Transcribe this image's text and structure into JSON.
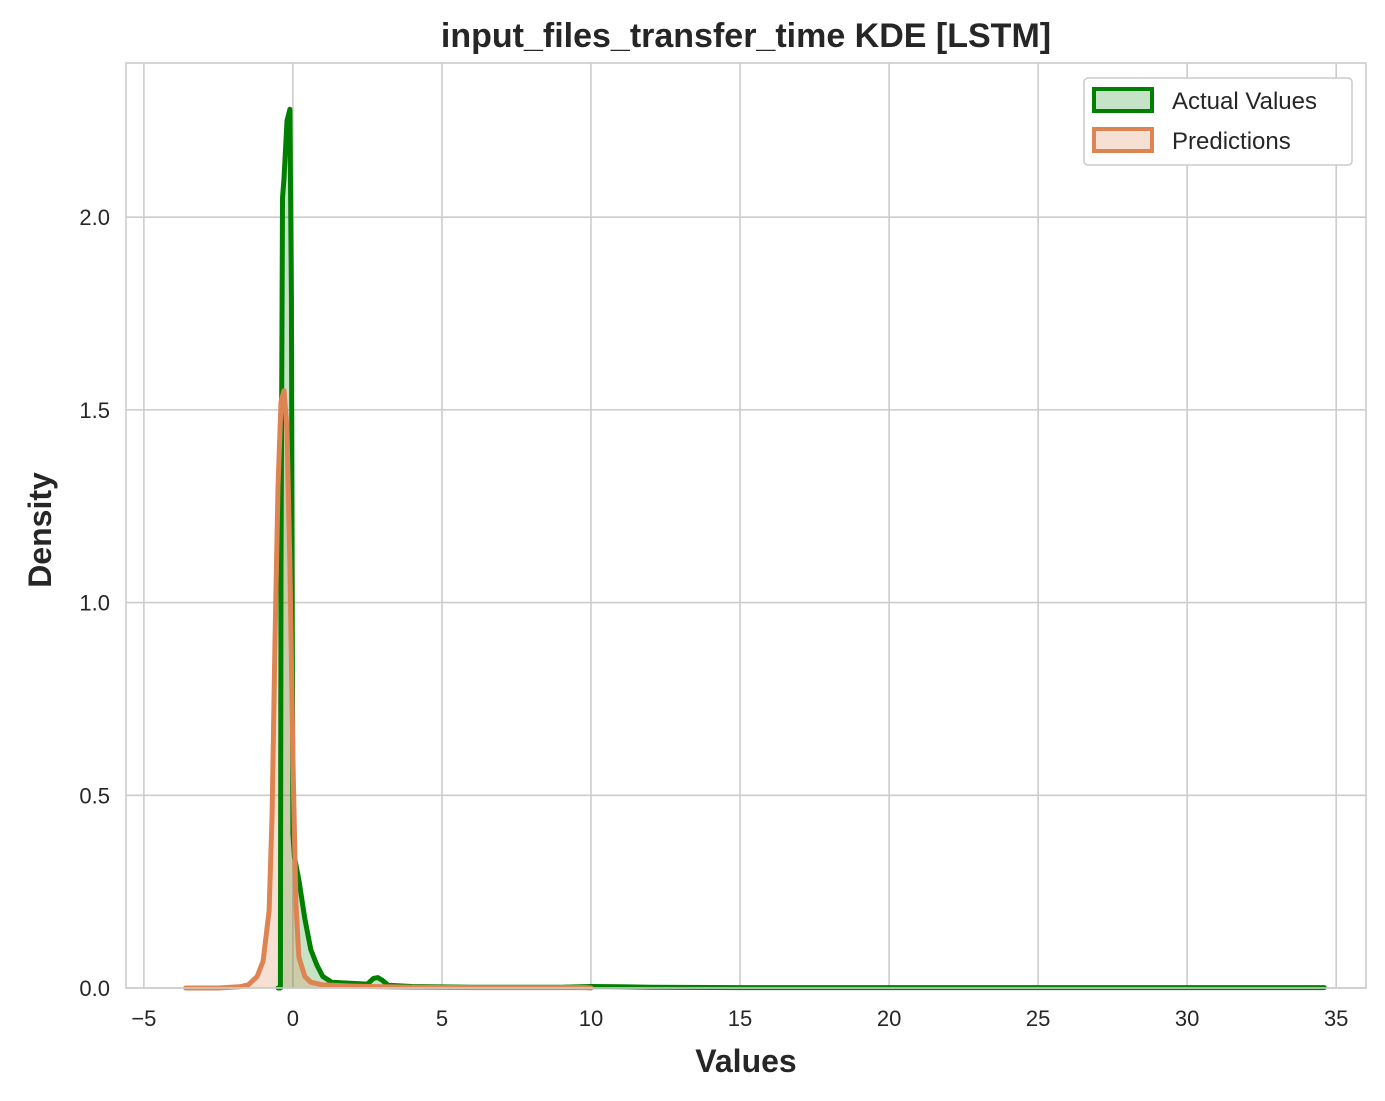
{
  "chart_data": {
    "type": "area",
    "title": "input_files_transfer_time KDE [LSTM]",
    "xlabel": "Values",
    "ylabel": "Density",
    "xlim": [
      -5,
      35
    ],
    "ylim": [
      0,
      2.4
    ],
    "x_ticks": [
      -5,
      0,
      5,
      10,
      15,
      20,
      25,
      30,
      35
    ],
    "y_ticks": [
      0.0,
      0.5,
      1.0,
      1.5,
      2.0
    ],
    "x_tick_labels": [
      "−5",
      "0",
      "5",
      "10",
      "15",
      "20",
      "25",
      "30",
      "35"
    ],
    "y_tick_labels": [
      "0.0",
      "0.5",
      "1.0",
      "1.5",
      "2.0"
    ],
    "grid": true,
    "legend_position": "top-right",
    "series": [
      {
        "name": "Actual Values",
        "color": "#008000",
        "points": [
          [
            -0.5,
            0
          ],
          [
            -0.42,
            0
          ],
          [
            -0.4,
            1.1
          ],
          [
            -0.35,
            2.05
          ],
          [
            -0.3,
            2.1
          ],
          [
            -0.2,
            2.25
          ],
          [
            -0.1,
            2.28
          ],
          [
            -0.05,
            1.8
          ],
          [
            0.0,
            0.4
          ],
          [
            0.05,
            0.34
          ],
          [
            0.2,
            0.28
          ],
          [
            0.4,
            0.18
          ],
          [
            0.6,
            0.1
          ],
          [
            0.8,
            0.06
          ],
          [
            1.0,
            0.03
          ],
          [
            1.3,
            0.015
          ],
          [
            2.0,
            0.012
          ],
          [
            2.5,
            0.01
          ],
          [
            2.7,
            0.025
          ],
          [
            2.85,
            0.027
          ],
          [
            3.0,
            0.02
          ],
          [
            3.2,
            0.007
          ],
          [
            4.0,
            0.004
          ],
          [
            6.0,
            0.002
          ],
          [
            9.0,
            0.002
          ],
          [
            10.0,
            0.004
          ],
          [
            11.0,
            0.003
          ],
          [
            12.0,
            0.002
          ],
          [
            15.0,
            0.001
          ],
          [
            20.0,
            0.001
          ],
          [
            25.0,
            0.001
          ],
          [
            30.0,
            0.001
          ],
          [
            34.6,
            0.001
          ]
        ]
      },
      {
        "name": "Predictions",
        "color": "#DD8452",
        "points": [
          [
            -3.6,
            0
          ],
          [
            -2.5,
            0
          ],
          [
            -1.8,
            0.003
          ],
          [
            -1.5,
            0.008
          ],
          [
            -1.2,
            0.03
          ],
          [
            -1.0,
            0.07
          ],
          [
            -0.8,
            0.2
          ],
          [
            -0.7,
            0.45
          ],
          [
            -0.6,
            0.9
          ],
          [
            -0.5,
            1.3
          ],
          [
            -0.4,
            1.52
          ],
          [
            -0.3,
            1.55
          ],
          [
            -0.2,
            1.45
          ],
          [
            -0.1,
            1.1
          ],
          [
            0.0,
            0.6
          ],
          [
            0.1,
            0.22
          ],
          [
            0.2,
            0.08
          ],
          [
            0.4,
            0.03
          ],
          [
            0.6,
            0.015
          ],
          [
            1.0,
            0.008
          ],
          [
            2.0,
            0.005
          ],
          [
            3.0,
            0.003
          ],
          [
            4.0,
            0.002
          ],
          [
            6.0,
            0.001
          ],
          [
            8.0,
            0.001
          ],
          [
            9.8,
            0.001
          ],
          [
            10.0,
            0
          ]
        ]
      }
    ]
  }
}
